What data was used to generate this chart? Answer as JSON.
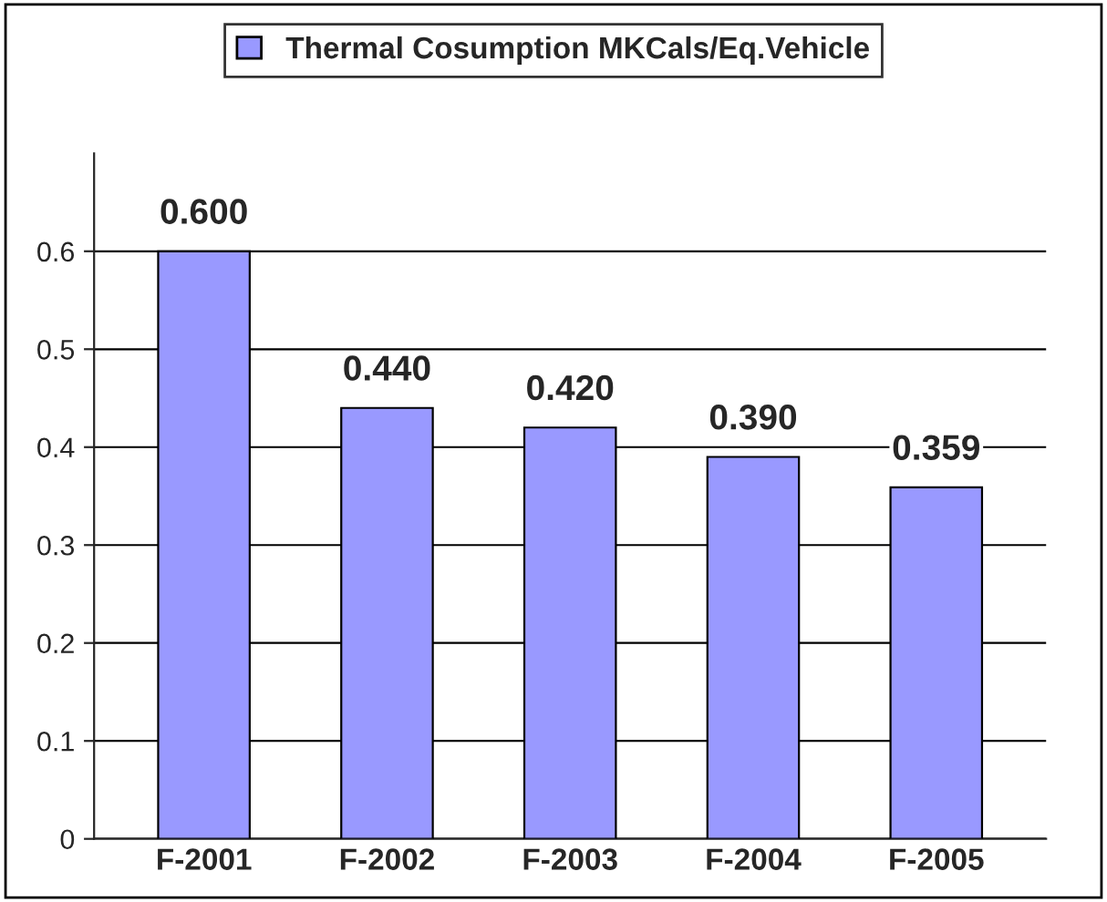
{
  "chart_data": {
    "type": "bar",
    "categories": [
      "F-2001",
      "F-2002",
      "F-2003",
      "F-2004",
      "F-2005"
    ],
    "series": [
      {
        "name": "Thermal Cosumption MKCals/Eq.Vehicle",
        "color": "#9999ff",
        "values": [
          0.6,
          0.44,
          0.42,
          0.39,
          0.359
        ],
        "value_labels": [
          "0.600",
          "0.440",
          "0.420",
          "0.390",
          "0.359"
        ]
      }
    ],
    "ylim": [
      0,
      0.7
    ],
    "yticks": [
      0,
      0.1,
      0.2,
      0.3,
      0.4,
      0.5,
      0.6
    ],
    "grid": "y",
    "legend": "top"
  }
}
